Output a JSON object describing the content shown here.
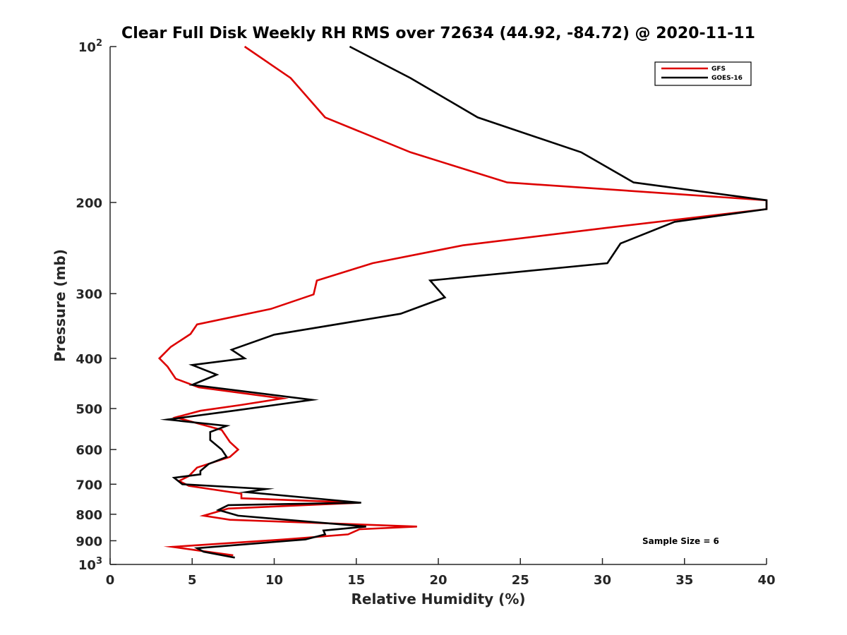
{
  "chart_data": {
    "type": "line",
    "title": "Clear Full Disk Weekly RH RMS over 72634 (44.92, -84.72) @ 2020-11-11",
    "xlabel": "Relative Humidity (%)",
    "ylabel": "Pressure (mb)",
    "xlim": [
      0,
      40
    ],
    "ylim": [
      100,
      1000
    ],
    "yscale": "log",
    "y_reversed": true,
    "x_ticks": [
      0,
      5,
      10,
      15,
      20,
      25,
      30,
      35,
      40
    ],
    "x_tick_labels": [
      "0",
      "5",
      "10",
      "15",
      "20",
      "25",
      "30",
      "35",
      "40"
    ],
    "y_ticks": [
      100,
      200,
      300,
      400,
      500,
      600,
      700,
      800,
      900,
      1000
    ],
    "y_tick_labels": [
      {
        "base": "10",
        "exp": "2"
      },
      {
        "base": "200",
        "exp": ""
      },
      {
        "base": "300",
        "exp": ""
      },
      {
        "base": "400",
        "exp": ""
      },
      {
        "base": "500",
        "exp": ""
      },
      {
        "base": "600",
        "exp": ""
      },
      {
        "base": "700",
        "exp": ""
      },
      {
        "base": "800",
        "exp": ""
      },
      {
        "base": "900",
        "exp": ""
      },
      {
        "base": "10",
        "exp": "3"
      }
    ],
    "grid": false,
    "legend_position": "top-right",
    "annotation": "Sample Size = 6",
    "series": [
      {
        "name": "GFS",
        "color": "#dd0000",
        "x": [
          8.2,
          11.0,
          13.1,
          18.3,
          24.2,
          40.0,
          40.0,
          30.2,
          21.5,
          16.0,
          12.6,
          12.4,
          9.8,
          5.3,
          4.9,
          3.7,
          3.0,
          3.5,
          4.0,
          5.4,
          10.5,
          8.0,
          5.5,
          4.0,
          6.8,
          7.3,
          7.8,
          7.3,
          5.3,
          4.8,
          4.2,
          4.8,
          8.0,
          8.0,
          15.2,
          7.2,
          5.7,
          7.3,
          18.7,
          15.2,
          14.5,
          10.6,
          3.8,
          5.4,
          7.5
        ],
        "y": [
          100,
          115,
          137,
          160,
          183,
          198,
          206,
          224,
          242,
          262,
          283,
          301,
          321,
          344,
          359,
          380,
          400,
          415,
          438,
          455,
          478,
          492,
          505,
          520,
          550,
          580,
          600,
          620,
          650,
          675,
          690,
          705,
          730,
          745,
          760,
          780,
          805,
          820,
          845,
          855,
          875,
          895,
          925,
          940,
          960
        ]
      },
      {
        "name": "GOES-16",
        "color": "#000000",
        "x": [
          14.6,
          18.3,
          22.4,
          28.7,
          31.9,
          40.0,
          40.0,
          34.4,
          31.1,
          30.3,
          19.5,
          20.4,
          17.7,
          10.0,
          7.4,
          8.2,
          5.0,
          6.5,
          5.0,
          12.3,
          7.5,
          3.5,
          7.1,
          6.1,
          6.1,
          6.8,
          7.1,
          6.0,
          5.5,
          5.5,
          3.9,
          4.4,
          9.5,
          8.3,
          15.3,
          7.2,
          6.6,
          7.8,
          15.6,
          13.0,
          13.1,
          11.9,
          5.3,
          5.7,
          7.6
        ],
        "y": [
          100,
          115,
          137,
          160,
          183,
          198,
          206,
          218,
          240,
          262,
          283,
          305,
          328,
          360,
          385,
          400,
          412,
          430,
          450,
          481,
          505,
          525,
          540,
          555,
          575,
          600,
          620,
          640,
          660,
          670,
          680,
          700,
          715,
          725,
          760,
          768,
          785,
          805,
          845,
          860,
          875,
          895,
          930,
          945,
          970
        ]
      }
    ]
  }
}
